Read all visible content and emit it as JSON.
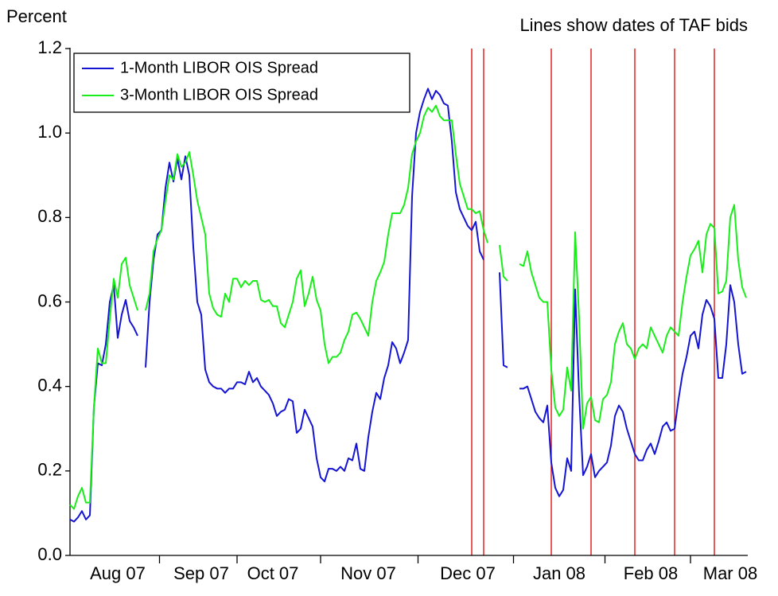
{
  "chart_data": {
    "type": "line",
    "y_label": "Percent",
    "annotation": "Lines show dates of TAF bids",
    "categories": [
      null,
      null,
      null,
      null,
      null,
      null,
      null,
      null,
      null,
      null,
      null,
      null,
      "Aug 07",
      null,
      null,
      null,
      null,
      null,
      null,
      null,
      null,
      null,
      null,
      null,
      null,
      null,
      null,
      null,
      null,
      null,
      null,
      null,
      null,
      "Sep 07",
      null,
      null,
      null,
      null,
      null,
      null,
      null,
      null,
      null,
      null,
      null,
      null,
      null,
      null,
      null,
      null,
      null,
      "Oct 07",
      null,
      null,
      null,
      null,
      null,
      null,
      null,
      null,
      null,
      null,
      null,
      null,
      null,
      null,
      null,
      null,
      null,
      null,
      null,
      null,
      null,
      null,
      null,
      "Nov 07",
      null,
      null,
      null,
      null,
      null,
      null,
      null,
      null,
      null,
      null,
      null,
      null,
      null,
      null,
      null,
      null,
      null,
      null,
      null,
      null,
      null,
      null,
      null,
      null,
      "Dec 07",
      null,
      null,
      null,
      null,
      null,
      null,
      null,
      null,
      null,
      null,
      null,
      null,
      null,
      null,
      null,
      null,
      null,
      null,
      null,
      null,
      null,
      null,
      "Jan 08",
      null,
      null,
      null,
      null,
      null,
      null,
      null,
      null,
      null,
      null,
      null,
      null,
      null,
      null,
      null,
      null,
      null,
      null,
      null,
      null,
      null,
      null,
      "Feb 08",
      null,
      null,
      null,
      null,
      null,
      null,
      null,
      null,
      null,
      null,
      null,
      null,
      null,
      null,
      null,
      null,
      null,
      null,
      null,
      "Mar 08",
      null,
      null,
      null,
      null
    ],
    "series": [
      {
        "name": "1-Month LIBOR OIS Spread",
        "color": "#1414d2",
        "values": [
          0.085,
          0.08,
          0.09,
          0.105,
          0.085,
          0.095,
          0.35,
          0.455,
          0.45,
          0.5,
          0.6,
          0.64,
          0.515,
          0.57,
          0.605,
          0.555,
          0.54,
          0.52,
          null,
          0.445,
          0.6,
          0.7,
          0.76,
          0.77,
          0.87,
          0.93,
          0.885,
          0.94,
          0.89,
          0.945,
          0.9,
          0.73,
          0.6,
          0.57,
          0.44,
          0.41,
          0.4,
          0.395,
          0.395,
          0.385,
          0.395,
          0.395,
          0.41,
          0.41,
          0.405,
          0.435,
          0.41,
          0.42,
          0.4,
          0.39,
          0.38,
          0.36,
          0.33,
          0.34,
          0.345,
          0.37,
          0.365,
          0.29,
          0.3,
          0.345,
          0.325,
          0.305,
          0.23,
          0.185,
          0.175,
          0.205,
          0.205,
          0.2,
          0.21,
          0.2,
          0.23,
          0.225,
          0.265,
          0.205,
          0.2,
          0.28,
          0.34,
          0.385,
          0.37,
          0.42,
          0.45,
          0.505,
          0.49,
          0.455,
          0.48,
          0.51,
          0.85,
          1.0,
          1.05,
          1.08,
          1.105,
          1.08,
          1.1,
          1.09,
          1.07,
          1.065,
          0.98,
          0.86,
          0.82,
          0.8,
          0.78,
          0.77,
          0.79,
          0.72,
          0.7,
          null,
          null,
          null,
          0.67,
          0.45,
          0.445,
          null,
          null,
          0.395,
          0.395,
          0.4,
          0.37,
          0.34,
          0.325,
          0.315,
          0.355,
          0.22,
          0.16,
          0.14,
          0.155,
          0.23,
          0.2,
          0.63,
          0.38,
          0.19,
          0.21,
          0.24,
          0.185,
          0.2,
          0.21,
          0.22,
          0.26,
          0.33,
          0.355,
          0.34,
          0.3,
          0.27,
          0.24,
          0.225,
          0.225,
          0.25,
          0.265,
          0.24,
          0.27,
          0.305,
          0.315,
          0.295,
          0.3,
          0.37,
          0.43,
          0.47,
          0.52,
          0.53,
          0.49,
          0.57,
          0.605,
          0.59,
          0.56,
          0.42,
          0.42,
          0.5,
          0.64,
          0.6,
          0.5,
          0.43,
          0.435
        ]
      },
      {
        "name": "3-Month LIBOR OIS Spread",
        "color": "#1aee1a",
        "values": [
          0.12,
          0.11,
          0.14,
          0.16,
          0.125,
          0.125,
          0.35,
          0.49,
          0.455,
          0.455,
          0.56,
          0.655,
          0.61,
          0.69,
          0.705,
          0.64,
          0.61,
          0.58,
          null,
          0.58,
          0.62,
          0.72,
          0.75,
          0.77,
          0.84,
          0.9,
          0.89,
          0.95,
          0.92,
          0.93,
          0.955,
          0.9,
          0.84,
          0.8,
          0.76,
          0.62,
          0.585,
          0.57,
          0.565,
          0.62,
          0.6,
          0.655,
          0.655,
          0.635,
          0.65,
          0.64,
          0.65,
          0.65,
          0.605,
          0.6,
          0.605,
          0.59,
          0.59,
          0.55,
          0.54,
          0.57,
          0.6,
          0.655,
          0.675,
          0.59,
          0.62,
          0.66,
          0.605,
          0.58,
          0.5,
          0.455,
          0.47,
          0.47,
          0.48,
          0.51,
          0.53,
          0.57,
          0.575,
          0.56,
          0.54,
          0.52,
          0.6,
          0.65,
          0.67,
          0.695,
          0.76,
          0.81,
          0.81,
          0.81,
          0.83,
          0.87,
          0.95,
          0.98,
          1.0,
          1.04,
          1.06,
          1.05,
          1.065,
          1.04,
          1.03,
          1.03,
          1.03,
          0.95,
          0.88,
          0.85,
          0.82,
          0.82,
          0.81,
          0.815,
          0.77,
          0.74,
          null,
          null,
          0.735,
          0.66,
          0.65,
          null,
          null,
          0.69,
          0.685,
          0.72,
          0.67,
          0.64,
          0.61,
          0.6,
          0.6,
          0.44,
          0.35,
          0.33,
          0.345,
          0.445,
          0.39,
          0.765,
          0.56,
          0.3,
          0.36,
          0.375,
          0.32,
          0.315,
          0.37,
          0.38,
          0.41,
          0.5,
          0.53,
          0.55,
          0.5,
          0.49,
          0.465,
          0.49,
          0.5,
          0.49,
          0.54,
          0.52,
          0.5,
          0.48,
          0.52,
          0.54,
          0.53,
          0.52,
          0.6,
          0.66,
          0.71,
          0.725,
          0.745,
          0.67,
          0.76,
          0.785,
          0.775,
          0.62,
          0.625,
          0.65,
          0.8,
          0.83,
          0.7,
          0.635,
          0.61
        ]
      }
    ],
    "taf_bid_lines": [
      101,
      104,
      121,
      131,
      142,
      152,
      162
    ],
    "taf_line_color": "#e00000",
    "ylim": [
      0,
      1.2
    ],
    "yticks": [
      {
        "value": 0,
        "label": "0.0"
      },
      0.2,
      0.4,
      0.6,
      0.8,
      {
        "value": 1,
        "label": "1.0"
      },
      1.2
    ],
    "legend": "upper left"
  }
}
